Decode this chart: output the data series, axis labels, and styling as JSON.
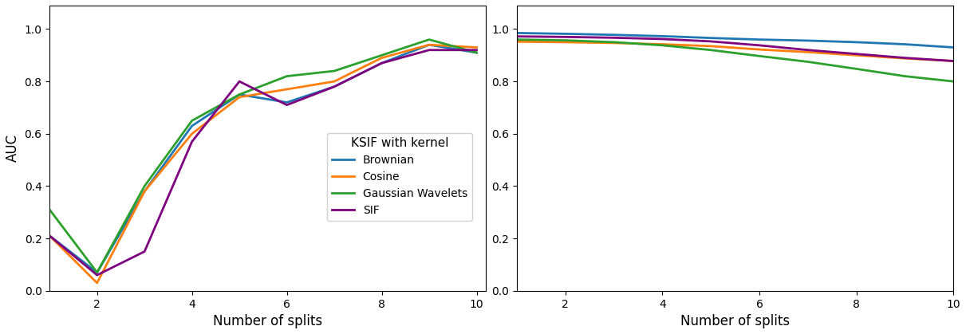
{
  "x": [
    1,
    2,
    3,
    4,
    5,
    6,
    7,
    8,
    9,
    10
  ],
  "left": {
    "Brownian": [
      0.21,
      0.07,
      0.38,
      0.63,
      0.75,
      0.72,
      0.78,
      0.87,
      0.94,
      0.91
    ],
    "Cosine": [
      0.21,
      0.03,
      0.38,
      0.6,
      0.74,
      0.77,
      0.8,
      0.89,
      0.94,
      0.93
    ],
    "Gaussian Wavelets": [
      0.31,
      0.07,
      0.4,
      0.65,
      0.75,
      0.82,
      0.84,
      0.9,
      0.96,
      0.91
    ],
    "SIF": [
      0.21,
      0.06,
      0.15,
      0.57,
      0.8,
      0.71,
      0.78,
      0.87,
      0.92,
      0.92
    ]
  },
  "right": {
    "Brownian": [
      0.985,
      0.982,
      0.978,
      0.973,
      0.966,
      0.96,
      0.956,
      0.95,
      0.942,
      0.93
    ],
    "Cosine": [
      0.952,
      0.95,
      0.947,
      0.942,
      0.935,
      0.922,
      0.912,
      0.9,
      0.888,
      0.878
    ],
    "Gaussian Wavelets": [
      0.96,
      0.957,
      0.95,
      0.938,
      0.92,
      0.897,
      0.875,
      0.848,
      0.82,
      0.8
    ],
    "SIF": [
      0.972,
      0.97,
      0.967,
      0.962,
      0.953,
      0.938,
      0.92,
      0.905,
      0.89,
      0.878
    ]
  },
  "colors": {
    "Brownian": "#1f77b4",
    "Cosine": "#ff7f0e",
    "Gaussian Wavelets": "#2ca02c",
    "SIF": "#7f007f"
  },
  "ylabel": "AUC",
  "xlabel": "Number of splits",
  "legend_title": "KSIF with kernel",
  "ylim_left": [
    0.0,
    1.09
  ],
  "ylim_right": [
    0.0,
    1.09
  ],
  "xlim_left": [
    1,
    10.2
  ],
  "xlim_right": [
    1,
    10
  ],
  "xticks_left": [
    2,
    4,
    6,
    8,
    10
  ],
  "xticks_right": [
    2,
    4,
    6,
    8,
    10
  ],
  "yticks": [
    0.0,
    0.2,
    0.4,
    0.6,
    0.8,
    1.0
  ]
}
